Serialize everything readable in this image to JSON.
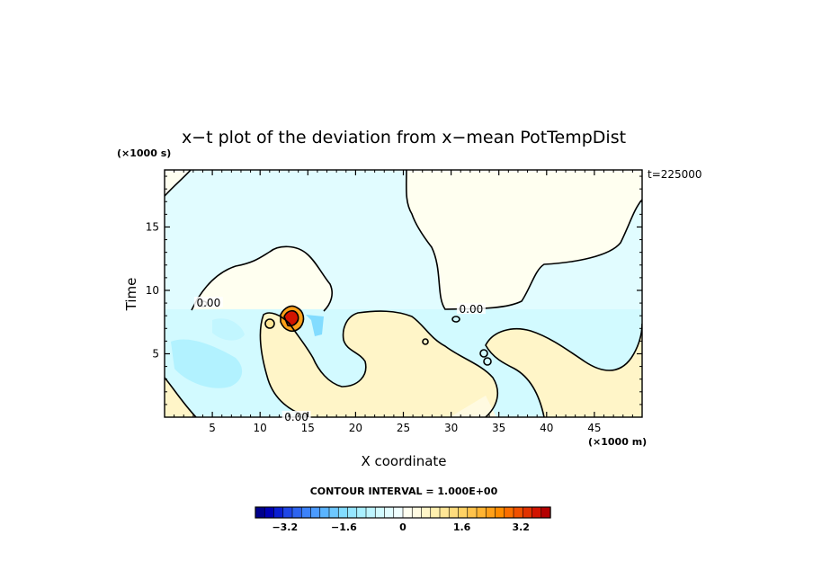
{
  "chart_data": {
    "type": "heatmap",
    "title": "x−t plot of the deviation from x−mean PotTempDist",
    "xlabel": "X coordinate",
    "ylabel": "Time",
    "x_unit_label": "(×1000 m)",
    "y_unit_label": "(×1000 s)",
    "time_label": "t=225000",
    "xlim": [
      0,
      50
    ],
    "ylim": [
      0,
      19.5
    ],
    "x_ticks": [
      5,
      10,
      15,
      20,
      25,
      30,
      35,
      40,
      45
    ],
    "x_tick_labels": [
      "5",
      "10",
      "15",
      "20",
      "25",
      "30",
      "35",
      "40",
      "45"
    ],
    "y_ticks": [
      5,
      10,
      15
    ],
    "y_tick_labels": [
      "5",
      "10",
      "15"
    ],
    "contour_interval_label": "CONTOUR INTERVAL = 1.000E+00",
    "contour_labels": [
      {
        "text": "0.00",
        "x": 4.6,
        "y": 9.0
      },
      {
        "text": "0.00",
        "x": 32.1,
        "y": 8.5
      },
      {
        "text": "0.00",
        "x": 13.8,
        "y": 0.0
      }
    ],
    "colorbar": {
      "min": -4.0,
      "max": 4.0,
      "tick_values": [
        -3.2,
        -1.6,
        0,
        1.6,
        3.2
      ],
      "tick_labels": [
        "−3.2",
        "−1.6",
        "0",
        "1.6",
        "3.2"
      ],
      "colors": [
        "#00008c",
        "#0000b4",
        "#0a1ed2",
        "#1e46e6",
        "#2d64f0",
        "#3c82fa",
        "#4b9bff",
        "#5ab4ff",
        "#6ec8ff",
        "#82dcff",
        "#96e6ff",
        "#aaf0ff",
        "#bef5ff",
        "#d2faff",
        "#e1fcff",
        "#f0ffff",
        "#fffff0",
        "#fffae1",
        "#fff5c8",
        "#fff0af",
        "#ffe696",
        "#ffdc7d",
        "#ffd264",
        "#ffc34b",
        "#ffb432",
        "#ffa019",
        "#ff8c00",
        "#fa6e00",
        "#f05000",
        "#e13200",
        "#d21400",
        "#b40000"
      ]
    }
  }
}
